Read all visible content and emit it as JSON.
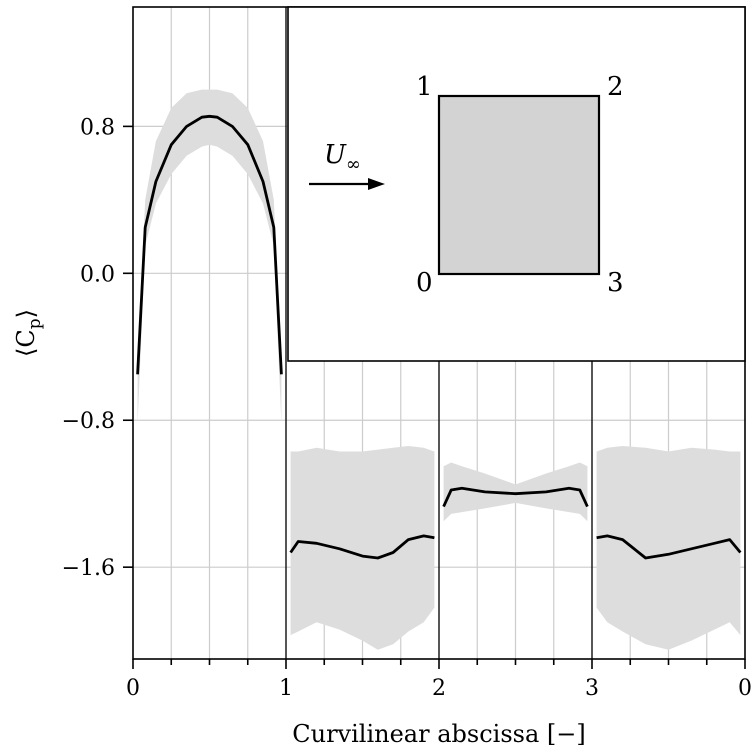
{
  "chart_data": {
    "type": "line",
    "xlabel": "Curvilinear abscissa [−]",
    "ylabel": "⟨C",
    "ylabel_sub": "p",
    "ylabel_close": "⟩",
    "xlim": [
      0,
      4
    ],
    "ylim": [
      -2.1,
      1.45
    ],
    "x_ticks": [
      0,
      1,
      2,
      3,
      4
    ],
    "x_tick_labels": [
      "0",
      "1",
      "2",
      "3",
      "0"
    ],
    "y_ticks": [
      0.8,
      0.0,
      -0.8,
      -1.6
    ],
    "y_tick_labels": [
      "0.8",
      "0.0",
      "−0.8",
      "−1.6"
    ],
    "grid": true,
    "series": [
      {
        "segment": "0-1",
        "x": [
          0.03,
          0.08,
          0.15,
          0.25,
          0.35,
          0.45,
          0.5,
          0.55,
          0.65,
          0.75,
          0.85,
          0.92,
          0.97
        ],
        "y": [
          -0.55,
          0.25,
          0.5,
          0.7,
          0.8,
          0.85,
          0.855,
          0.85,
          0.8,
          0.7,
          0.5,
          0.25,
          -0.55
        ],
        "band_upper": [
          -0.5,
          0.4,
          0.72,
          0.9,
          0.98,
          1.0,
          1.0,
          1.0,
          0.98,
          0.9,
          0.72,
          0.4,
          -0.5
        ],
        "band_lower": [
          -0.82,
          0.15,
          0.38,
          0.54,
          0.64,
          0.69,
          0.7,
          0.69,
          0.64,
          0.54,
          0.38,
          0.15,
          -0.82
        ]
      },
      {
        "segment": "1-2",
        "x": [
          1.03,
          1.08,
          1.2,
          1.35,
          1.5,
          1.6,
          1.7,
          1.8,
          1.9,
          1.97
        ],
        "y": [
          -1.52,
          -1.46,
          -1.47,
          -1.5,
          -1.54,
          -1.55,
          -1.52,
          -1.45,
          -1.43,
          -1.44
        ],
        "band_upper": [
          -0.97,
          -0.97,
          -0.95,
          -0.97,
          -0.97,
          -0.96,
          -0.95,
          -0.94,
          -0.95,
          -0.97
        ],
        "band_lower": [
          -1.97,
          -1.95,
          -1.9,
          -1.94,
          -2.0,
          -2.05,
          -2.02,
          -1.95,
          -1.9,
          -1.82
        ]
      },
      {
        "segment": "2-3",
        "x": [
          2.03,
          2.08,
          2.15,
          2.3,
          2.5,
          2.7,
          2.85,
          2.92,
          2.97
        ],
        "y": [
          -1.27,
          -1.18,
          -1.17,
          -1.19,
          -1.2,
          -1.19,
          -1.17,
          -1.18,
          -1.27
        ],
        "band_upper": [
          -1.05,
          -1.03,
          -1.05,
          -1.09,
          -1.15,
          -1.09,
          -1.05,
          -1.03,
          -1.05
        ],
        "band_lower": [
          -1.35,
          -1.31,
          -1.3,
          -1.28,
          -1.25,
          -1.28,
          -1.3,
          -1.31,
          -1.35
        ]
      },
      {
        "segment": "3-0",
        "x": [
          3.03,
          3.1,
          3.2,
          3.35,
          3.5,
          3.65,
          3.8,
          3.9,
          3.97
        ],
        "y": [
          -1.44,
          -1.43,
          -1.45,
          -1.55,
          -1.53,
          -1.5,
          -1.47,
          -1.45,
          -1.52
        ],
        "band_upper": [
          -0.97,
          -0.95,
          -0.94,
          -0.95,
          -0.97,
          -0.95,
          -0.96,
          -0.97,
          -0.97
        ],
        "band_lower": [
          -1.82,
          -1.9,
          -1.95,
          -2.02,
          -2.05,
          -2.0,
          -1.94,
          -1.9,
          -1.97
        ]
      }
    ],
    "inset": {
      "corner_labels": [
        "0",
        "1",
        "2",
        "3"
      ],
      "flow_label": "U",
      "flow_label_sub": "∞",
      "square_fill": "#d3d3d3"
    },
    "colors": {
      "line": "#000000",
      "band": "#dddddd",
      "grid": "#cccccc"
    }
  }
}
